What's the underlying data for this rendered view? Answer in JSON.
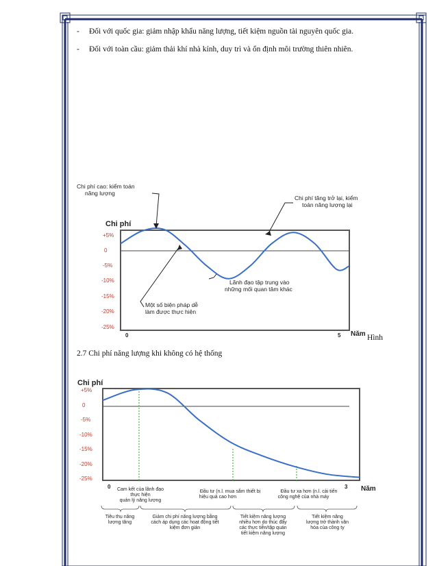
{
  "bullets": [
    "Đối với quốc gia: giảm nhập khẩu năng lượng, tiết kiệm nguồn tài nguyên quốc gia.",
    "Đối với toàn cầu: giảm thải khí nhà kính, duy trì và ổn định môi trường thiên nhiên."
  ],
  "bullet_marker": "-",
  "figure_label_tail": "Hình",
  "caption": "2.7 Chi phí năng lượng khi không có hệ thống",
  "chart1": {
    "ylabel": "Chi phí",
    "xlabel": "Năm",
    "yticks": [
      "+5%",
      "0",
      "-5%",
      "-10%",
      "-15%",
      "-20%",
      "-25%"
    ],
    "xticks": [
      "0",
      "5"
    ],
    "annotations": {
      "a1_l1": "Chi phí cao: kiểm toán",
      "a1_l2": "năng lượng",
      "a2_l1": "Chi phí tăng trở lại, kiểm",
      "a2_l2": "toán năng lượng lại",
      "a3_l1": "Lãnh đạo tập trung vào",
      "a3_l2": "những mối quan tâm khác",
      "a4_l1": "Một số biện pháp dễ",
      "a4_l2": "làm được thực hiện"
    }
  },
  "chart2": {
    "ylabel": "Chi phí",
    "xlabel": "Năm",
    "yticks": [
      "+5%",
      "0",
      "-5%",
      "-10%",
      "-15%",
      "-20%",
      "-25%"
    ],
    "xticks": [
      "0",
      "3"
    ],
    "top_notes": {
      "n1_l1": "Cam kết của lãnh đạo",
      "n1_l2": "thực hiện",
      "n1_l3": "quản lý năng lượng",
      "n2_l1": "Đầu tư (n.l. mua sắm thiết bị",
      "n2_l2": "hiệu quả cao hơn",
      "n3_l1": "Đầu tư xa hơn (n.l. cải tiến",
      "n3_l2": "công nghệ của nhà máy"
    },
    "bottom_notes": {
      "b1_l1": "Tiêu thụ năng",
      "b1_l2": "lượng tăng",
      "b2_l1": "Giảm chi phí năng lượng bằng",
      "b2_l2": "cách áp dụng các hoạt động tiết",
      "b2_l3": "kiệm đơn giản",
      "b3_l1": "Tiết kiệm năng lượng",
      "b3_l2": "nhiều hơn do thúc đẩy",
      "b3_l3": "các thực tiễn/tập quán",
      "b3_l4": "tiết kiệm năng lượng",
      "b4_l1": "Tiết kiệm năng",
      "b4_l2": "lượng trở thành văn",
      "b4_l3": "hóa của công ty"
    }
  },
  "chart_data": [
    {
      "type": "line",
      "title": "",
      "xlabel": "Năm",
      "ylabel": "Chi phí",
      "x_range": [
        0,
        5.3
      ],
      "ylim": [
        -25,
        7
      ],
      "series": [
        {
          "x": [
            0,
            0.5,
            1.0,
            1.5,
            2.0,
            2.5,
            3.0,
            3.5,
            4.0,
            4.5,
            5.0,
            5.3
          ],
          "values": [
            1.5,
            5.5,
            6.0,
            1.0,
            -5.5,
            -9.5,
            -5.5,
            1.5,
            5.0,
            1.5,
            -6.5,
            -5.5
          ]
        }
      ]
    },
    {
      "type": "line",
      "title": "",
      "xlabel": "Năm",
      "ylabel": "Chi phí",
      "x_range": [
        0,
        3.2
      ],
      "ylim": [
        -25,
        7
      ],
      "series": [
        {
          "x": [
            0,
            0.4,
            0.8,
            1.2,
            1.6,
            2.0,
            2.4,
            2.8,
            3.2
          ],
          "values": [
            1.5,
            5.0,
            4.0,
            -5.0,
            -12.5,
            -17.0,
            -20.5,
            -23.0,
            -24.0
          ]
        }
      ]
    }
  ]
}
